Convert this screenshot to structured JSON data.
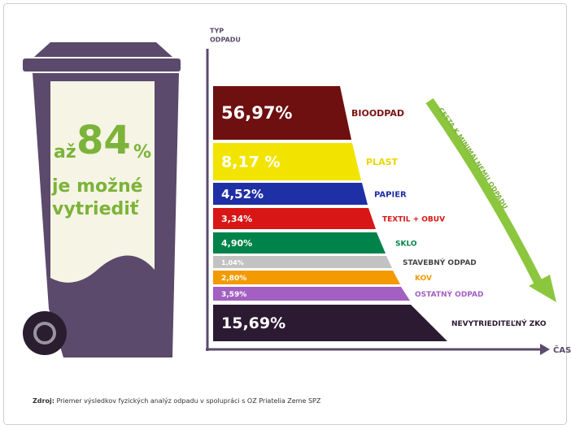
{
  "chart_data": {
    "type": "funnel",
    "ylabel_lines": [
      "TYP",
      "ODPADU"
    ],
    "xlabel": "ČAS",
    "annotation": "CESTA K MINIMÁLNEMU ODPADU",
    "headline": {
      "prefix": "až",
      "value": 84,
      "unit": "%",
      "lines": [
        "je možné",
        "vytriediť"
      ]
    },
    "categories": [
      "BIOODPAD",
      "PLAST",
      "PAPIER",
      "TEXTIL + OBUV",
      "SKLO",
      "STAVEBNÝ ODPAD",
      "KOV",
      "OSTATNÝ ODPAD",
      "NEVYTRIEDITEĽNÝ ZKO"
    ],
    "values": [
      56.97,
      8.17,
      4.52,
      3.34,
      4.9,
      1.04,
      2.8,
      3.59,
      15.69
    ],
    "value_labels": [
      "56,97%",
      "8,17 %",
      "4,52%",
      "3,34%",
      "4,90%",
      "1,04%",
      "2,80%",
      "3,59%",
      "15,69%"
    ],
    "colors": [
      "#6e1010",
      "#f3e400",
      "#1f2fa6",
      "#d81616",
      "#00834a",
      "#c2c2c2",
      "#f29a00",
      "#a35fc2",
      "#2b1a31"
    ],
    "label_colors": [
      "#7b1212",
      "#e8d800",
      "#1f2fa6",
      "#d81616",
      "#00834a",
      "#444444",
      "#f29a00",
      "#a35fc2",
      "#2b1a31"
    ],
    "source": {
      "label": "Zdroj:",
      "text": "Priemer výsledkov fyzických analýz odpadu v spolupráci s OZ Priatelia Zeme SPZ"
    }
  }
}
